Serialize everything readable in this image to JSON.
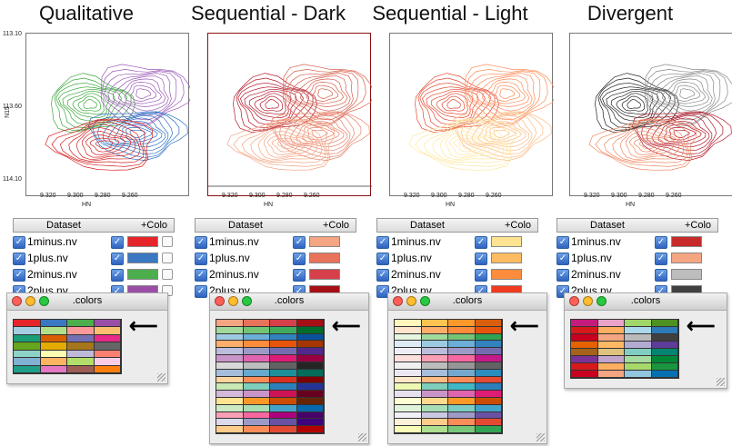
{
  "panels": [
    {
      "title": "Qualitative",
      "contours": [
        {
          "name": "green",
          "color": "#3aa83a"
        },
        {
          "name": "purple",
          "color": "#9b59b6"
        },
        {
          "name": "blue",
          "color": "#2a6fc4"
        },
        {
          "name": "red",
          "color": "#d42020"
        }
      ],
      "table_swatches": [
        "#e5252a",
        "#3a78c2",
        "#4cae4c",
        "#9b4ea6"
      ],
      "mini_buttons": true,
      "palette": [
        [
          "#e6252a",
          "#3a78c2",
          "#4cae4c",
          "#9b4ea6"
        ],
        [
          "#a6cee3",
          "#b2df8a",
          "#fb9a99",
          "#fdbf6f"
        ],
        [
          "#1b9e77",
          "#d95f02",
          "#7570b3",
          "#e7298a"
        ],
        [
          "#66a61e",
          "#e6ab02",
          "#a6761d",
          "#666666"
        ],
        [
          "#8dd3c7",
          "#ffffb3",
          "#bebada",
          "#fb8072"
        ],
        [
          "#80b1d3",
          "#fdb462",
          "#b3de69",
          "#fccde5"
        ],
        [
          "#1f9e89",
          "#e377c2",
          "#a05d56",
          "#ff7f0e"
        ]
      ]
    },
    {
      "title": "Sequential - Dark",
      "contours": [
        {
          "name": "dark-red",
          "color": "#b2182b"
        },
        {
          "name": "red",
          "color": "#d6604d"
        },
        {
          "name": "salmon",
          "color": "#e8816a"
        },
        {
          "name": "light-red",
          "color": "#f4a582"
        }
      ],
      "table_swatches": [
        "#f4a582",
        "#e8725a",
        "#d6404a",
        "#a50f15"
      ],
      "mini_buttons": false,
      "palette": [
        [
          "#f4a582",
          "#e8725a",
          "#d6404a",
          "#a50f15"
        ],
        [
          "#a1d99b",
          "#74c476",
          "#41ab5d",
          "#006d2c"
        ],
        [
          "#9ecae1",
          "#6baed6",
          "#3182bd",
          "#08519c"
        ],
        [
          "#fdae6b",
          "#fd8d3c",
          "#e6550d",
          "#a63603"
        ],
        [
          "#bcbddc",
          "#9e9ac8",
          "#756bb1",
          "#54278f"
        ],
        [
          "#c994c7",
          "#df65b0",
          "#dd1c77",
          "#980043"
        ],
        [
          "#d9d9d9",
          "#bdbdbd",
          "#636363",
          "#252525"
        ],
        [
          "#a6bddb",
          "#67a9cf",
          "#1c9099",
          "#016c59"
        ],
        [
          "#fdd49e",
          "#fc8d59",
          "#d7301f",
          "#7f0000"
        ],
        [
          "#c7e9b4",
          "#7fcdbb",
          "#2c7fb8",
          "#253494"
        ],
        [
          "#d4b9da",
          "#c994c7",
          "#ce1256",
          "#67001f"
        ],
        [
          "#fee391",
          "#fe9929",
          "#cc4c02",
          "#662506"
        ],
        [
          "#ccebc5",
          "#a8ddb5",
          "#43a2ca",
          "#0868ac"
        ],
        [
          "#fa9fb5",
          "#f768a1",
          "#ae017e",
          "#49006a"
        ],
        [
          "#dadaeb",
          "#9e9ac8",
          "#6a51a3",
          "#3f007d"
        ],
        [
          "#fdcc8a",
          "#fc8d59",
          "#e34a33",
          "#b30000"
        ]
      ]
    },
    {
      "title": "Sequential - Light",
      "contours": [
        {
          "name": "red",
          "color": "#e34a33"
        },
        {
          "name": "orange",
          "color": "#fc8d59"
        },
        {
          "name": "light-orange",
          "color": "#fdbb84"
        },
        {
          "name": "yellow",
          "color": "#fee8a0"
        }
      ],
      "table_swatches": [
        "#fee391",
        "#fdbb62",
        "#fd8d3c",
        "#f03b20"
      ],
      "mini_buttons": false,
      "palette": [
        [
          "#fff7bc",
          "#fec44f",
          "#fe9929",
          "#d95f0e"
        ],
        [
          "#fee6ce",
          "#fdae6b",
          "#fd8d3c",
          "#e6550d"
        ],
        [
          "#e5f5e0",
          "#a1d99b",
          "#74c476",
          "#31a354"
        ],
        [
          "#deebf7",
          "#9ecae1",
          "#6baed6",
          "#3182bd"
        ],
        [
          "#efedf5",
          "#bcbddc",
          "#9e9ac8",
          "#756bb1"
        ],
        [
          "#fde0dd",
          "#fa9fb5",
          "#f768a1",
          "#c51b8a"
        ],
        [
          "#f0f0f0",
          "#bdbdbd",
          "#969696",
          "#636363"
        ],
        [
          "#ece7f2",
          "#a6bddb",
          "#74a9cf",
          "#2b8cbe"
        ],
        [
          "#fee8c8",
          "#fdbb84",
          "#fc8d59",
          "#e34a33"
        ],
        [
          "#edf8b1",
          "#7fcdbb",
          "#41b6c4",
          "#2c7fb8"
        ],
        [
          "#e7e1ef",
          "#c994c7",
          "#df65b0",
          "#dd1c77"
        ],
        [
          "#ffffd4",
          "#fed98e",
          "#fe9929",
          "#cc4c02"
        ],
        [
          "#e0f3db",
          "#a8ddb5",
          "#7bccc4",
          "#43a2ca"
        ],
        [
          "#f2f0f7",
          "#cbc9e2",
          "#9e9ac8",
          "#6a51a3"
        ],
        [
          "#fef0d9",
          "#fdcc8a",
          "#fc8d59",
          "#e34a33"
        ],
        [
          "#f7fcb9",
          "#addd8e",
          "#78c679",
          "#31a354"
        ]
      ]
    },
    {
      "title": "Divergent",
      "contours": [
        {
          "name": "black",
          "color": "#222222"
        },
        {
          "name": "gray",
          "color": "#888888"
        },
        {
          "name": "dark-red",
          "color": "#b2182b"
        },
        {
          "name": "pink",
          "color": "#ef8a62"
        }
      ],
      "table_swatches": [
        "#c62a2a",
        "#f4a582",
        "#bdbdbd",
        "#404040"
      ],
      "mini_buttons": false,
      "palette": [
        [
          "#c51b7d",
          "#e9a3c9",
          "#a1d76a",
          "#4d9221"
        ],
        [
          "#d7191c",
          "#fdae61",
          "#abd9e9",
          "#2c7bb6"
        ],
        [
          "#ca0020",
          "#f4a582",
          "#bababa",
          "#404040"
        ],
        [
          "#e66101",
          "#fdb863",
          "#b2abd2",
          "#5e3c99"
        ],
        [
          "#a6611a",
          "#dfc27d",
          "#80cdc1",
          "#018571"
        ],
        [
          "#7b3294",
          "#c2a5cf",
          "#a6dba0",
          "#008837"
        ],
        [
          "#d7191c",
          "#fdae61",
          "#a6d96a",
          "#1a9641"
        ],
        [
          "#ca0020",
          "#f4a582",
          "#92c5de",
          "#0571b0"
        ]
      ]
    }
  ],
  "axes": {
    "y_label": "N15",
    "y_ticks": [
      "113.10",
      "113.60",
      "114.10"
    ],
    "x_label": "HN",
    "x_ticks": [
      "9.320",
      "9.300",
      "9.280",
      "9.260"
    ]
  },
  "table": {
    "header_dataset": "Dataset",
    "header_color": "+Colo",
    "rows": [
      "1minus.nv",
      "1plus.nv",
      "2minus.nv",
      "2plus.nv"
    ],
    "check_glyph": "✓"
  },
  "window": {
    "title": ".colors",
    "arrow_glyph": "⟵",
    "lights": [
      "#ff5f57",
      "#ffbd2e",
      "#28c940"
    ]
  }
}
